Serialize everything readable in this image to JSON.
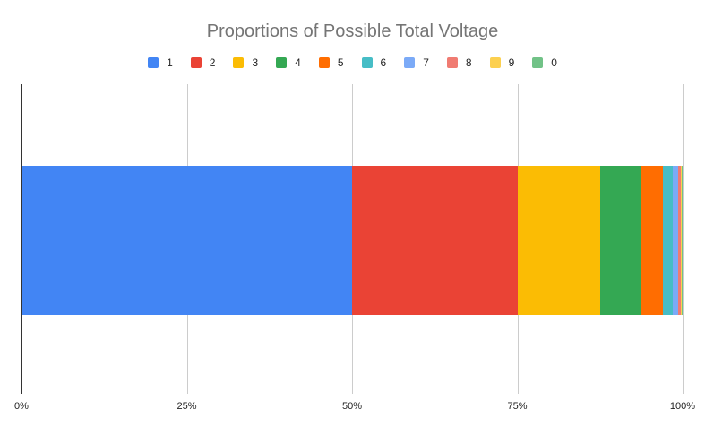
{
  "chart_data": {
    "type": "bar",
    "orientation": "horizontal",
    "stacked": "100%",
    "title": "Proportions of Possible Total Voltage",
    "xlabel": "",
    "ylabel": "",
    "xlim": [
      0,
      100
    ],
    "x_ticks": [
      "0%",
      "25%",
      "50%",
      "75%",
      "100%"
    ],
    "grid": true,
    "legend_position": "top",
    "categories": [
      ""
    ],
    "series": [
      {
        "name": "1",
        "color": "#4285F4",
        "values": [
          50.0
        ]
      },
      {
        "name": "2",
        "color": "#EA4335",
        "values": [
          25.0
        ]
      },
      {
        "name": "3",
        "color": "#FBBC04",
        "values": [
          12.5
        ]
      },
      {
        "name": "4",
        "color": "#34A853",
        "values": [
          6.25
        ]
      },
      {
        "name": "5",
        "color": "#FF6D01",
        "values": [
          3.125
        ]
      },
      {
        "name": "6",
        "color": "#46BDC6",
        "values": [
          1.5625
        ]
      },
      {
        "name": "7",
        "color": "#7BAAF7",
        "values": [
          0.78
        ]
      },
      {
        "name": "8",
        "color": "#F07B72",
        "values": [
          0.39
        ]
      },
      {
        "name": "9",
        "color": "#FCD04F",
        "values": [
          0.2
        ]
      },
      {
        "name": "0",
        "color": "#71C287",
        "values": [
          0.1
        ]
      }
    ]
  }
}
